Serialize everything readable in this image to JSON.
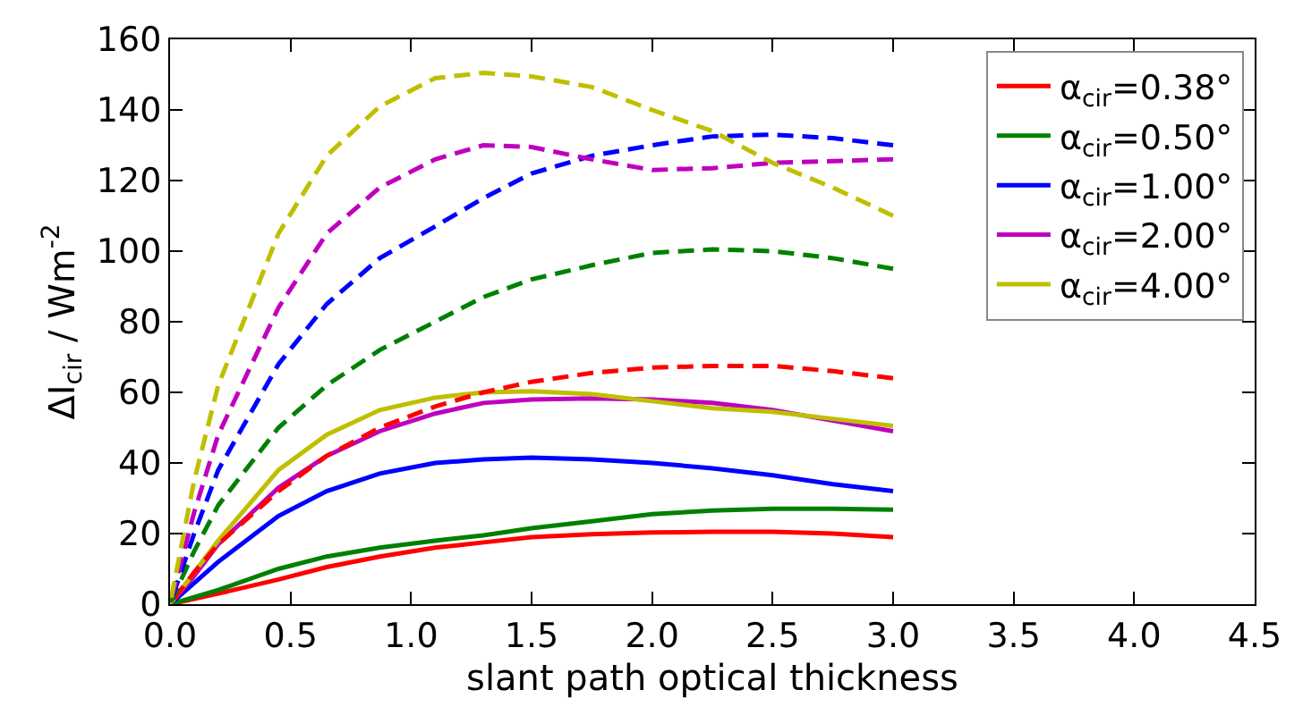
{
  "chart_data": {
    "type": "line",
    "xlabel": "slant path optical thickness",
    "ylabel": "ΔI$_{cir}$ / Wm$^{-2}$",
    "x": [
      0,
      0.1,
      0.2,
      0.45,
      0.65,
      0.87,
      1.1,
      1.3,
      1.5,
      1.75,
      2.0,
      2.25,
      2.5,
      2.75,
      3.0
    ],
    "xlim": [
      0,
      4.5
    ],
    "xticks": [
      {
        "value": 0,
        "label": "0.0"
      },
      0.5,
      {
        "value": 1,
        "label": "1.0"
      },
      1.5,
      {
        "value": 2,
        "label": "2.0"
      },
      2.5,
      {
        "value": 3,
        "label": "3.0"
      },
      3.5,
      {
        "value": 4,
        "label": "4.0"
      },
      4.5
    ],
    "ylim": [
      0,
      160
    ],
    "yticks": [
      0,
      20,
      40,
      60,
      80,
      100,
      120,
      140,
      160
    ],
    "legend": "top right",
    "marker": "none",
    "series": [
      {
        "name": "α$_{cir}$=0.38°",
        "color": "#ff0000",
        "line_style": "solid",
        "values": [
          0,
          1.5,
          3,
          7,
          10.5,
          13.5,
          16,
          17.5,
          19,
          19.8,
          20.3,
          20.5,
          20.5,
          20,
          19
        ]
      },
      {
        "name": "α$_{cir}$=0.50°",
        "color": "#008000",
        "line_style": "solid",
        "values": [
          0,
          2,
          4,
          10,
          13.5,
          16,
          18,
          19.5,
          21.5,
          23.5,
          25.5,
          26.5,
          27,
          27,
          26.8
        ]
      },
      {
        "name": "α$_{cir}$=1.00°",
        "color": "#0000ff",
        "line_style": "solid",
        "values": [
          0,
          6,
          12,
          25,
          32,
          37,
          40,
          41,
          41.5,
          41,
          40,
          38.5,
          36.5,
          34,
          32
        ]
      },
      {
        "name": "α$_{cir}$=2.00°",
        "color": "#bf00bf",
        "line_style": "solid",
        "values": [
          0,
          8,
          17,
          33,
          42,
          49,
          54,
          57,
          58,
          58.3,
          58,
          57,
          55,
          52,
          49
        ]
      },
      {
        "name": "α$_{cir}$=4.00°",
        "color": "#bfbf00",
        "line_style": "solid",
        "values": [
          0,
          9,
          18,
          38,
          48,
          55,
          58.5,
          60,
          60.3,
          59.5,
          57.5,
          55.5,
          54.5,
          52.5,
          50.5
        ]
      },
      {
        "color": "#ff0000",
        "line_style": "dashed",
        "values": [
          0,
          9,
          17,
          32,
          42,
          50,
          56,
          60,
          63,
          65.5,
          67,
          67.5,
          67.5,
          66,
          64
        ]
      },
      {
        "color": "#008000",
        "line_style": "dashed",
        "values": [
          0,
          15,
          28,
          50,
          62,
          72,
          80,
          87,
          92,
          96,
          99.5,
          100.5,
          100,
          98,
          95
        ]
      },
      {
        "color": "#0000ff",
        "line_style": "dashed",
        "values": [
          0,
          20,
          38,
          68,
          85,
          98,
          107,
          115,
          122,
          127,
          130,
          132.5,
          133,
          132,
          130
        ]
      },
      {
        "color": "#bf00bf",
        "line_style": "dashed",
        "values": [
          0,
          26,
          48,
          84,
          105,
          118,
          126,
          130,
          129.5,
          126,
          123,
          123.5,
          125,
          125.5,
          126
        ]
      },
      {
        "color": "#bfbf00",
        "line_style": "dashed",
        "values": [
          0,
          35,
          62,
          105,
          127,
          141,
          149,
          150.5,
          149.5,
          146.5,
          140,
          134,
          125,
          118,
          110
        ]
      }
    ]
  }
}
